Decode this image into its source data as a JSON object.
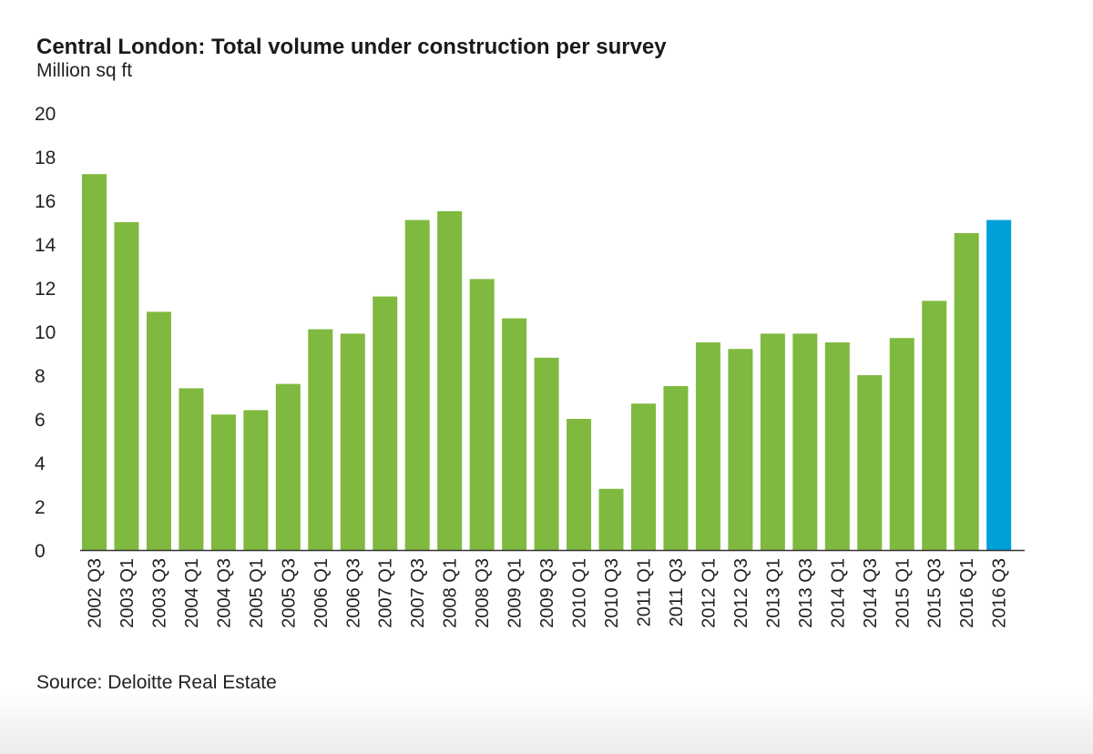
{
  "chart_data": {
    "type": "bar",
    "title": "Central London: Total volume under construction per survey",
    "subtitle": "Million sq ft",
    "source": "Source: Deloitte Real Estate",
    "xlabel": "",
    "ylabel": "",
    "ylim": [
      0,
      20
    ],
    "yticks": [
      0,
      2,
      4,
      6,
      8,
      10,
      12,
      14,
      16,
      18,
      20
    ],
    "grid": false,
    "categories": [
      "2002 Q3",
      "2003 Q1",
      "2003 Q3",
      "2004 Q1",
      "2004 Q3",
      "2005 Q1",
      "2005 Q3",
      "2006 Q1",
      "2006 Q3",
      "2007 Q1",
      "2007 Q3",
      "2008 Q1",
      "2008 Q3",
      "2009 Q1",
      "2009 Q3",
      "2010 Q1",
      "2010 Q3",
      "2011 Q1",
      "2011 Q3",
      "2012 Q1",
      "2012 Q3",
      "2013 Q1",
      "2013 Q3",
      "2014 Q1",
      "2014 Q3",
      "2015 Q1",
      "2015 Q3",
      "2016 Q1",
      "2016 Q3"
    ],
    "values": [
      17.2,
      15.0,
      10.9,
      7.4,
      6.2,
      6.4,
      7.6,
      10.1,
      9.9,
      11.6,
      15.1,
      15.5,
      12.4,
      10.6,
      8.8,
      6.0,
      2.8,
      6.7,
      7.5,
      9.5,
      9.2,
      9.9,
      9.9,
      9.5,
      8.0,
      9.7,
      11.4,
      14.5,
      15.1
    ],
    "colors": {
      "default_bar": "#7fb93f",
      "highlight_bar": "#009fd9",
      "axis": "#333333"
    },
    "highlight_index": 28
  }
}
